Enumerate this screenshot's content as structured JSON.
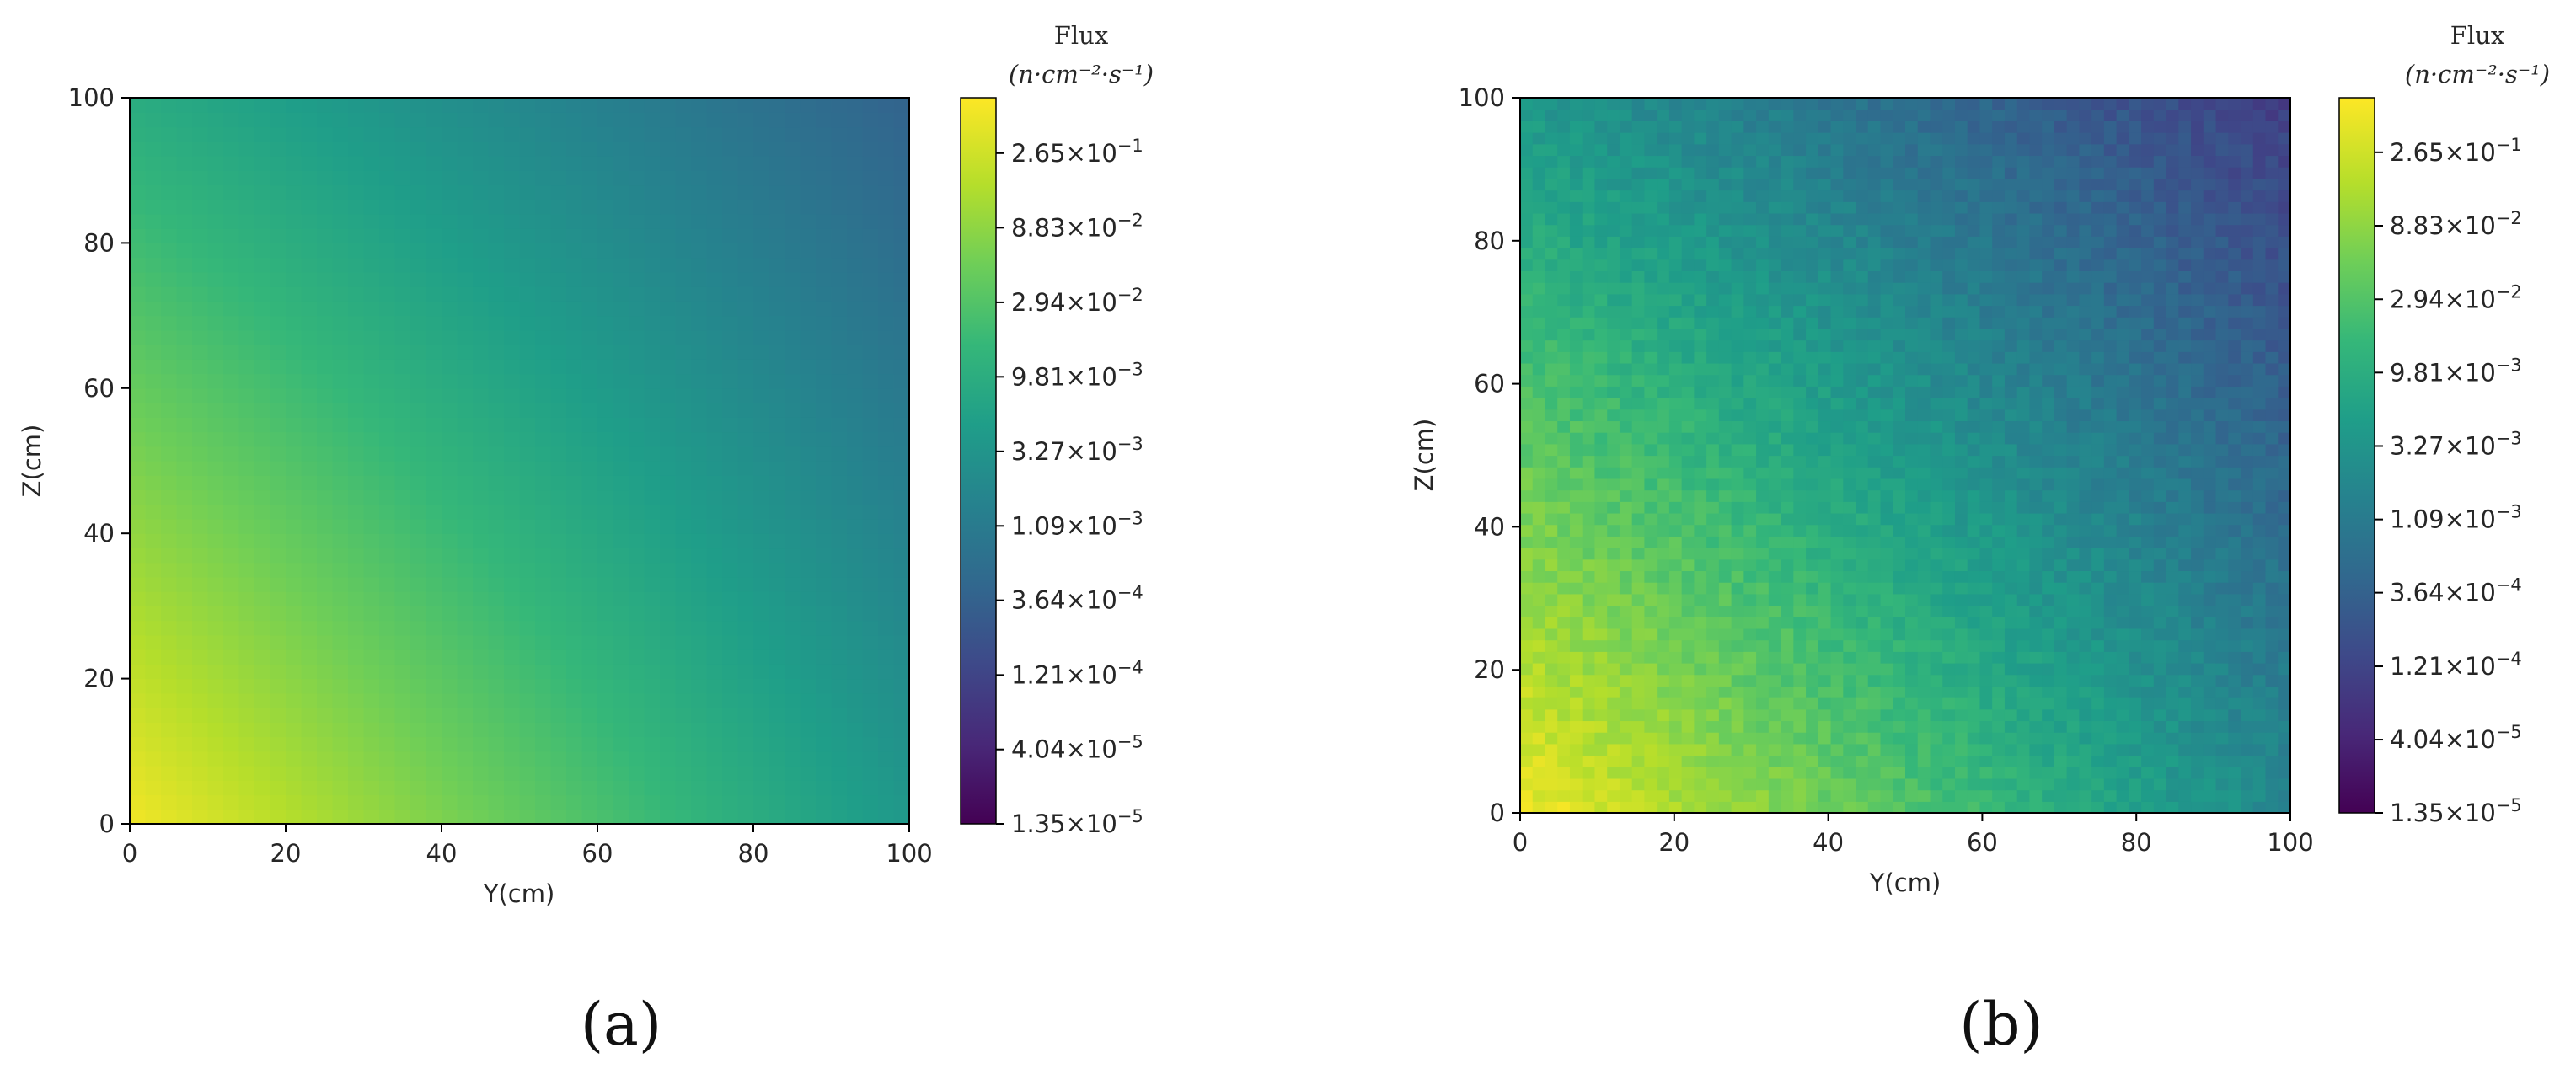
{
  "chart_data": [
    {
      "type": "heatmap",
      "panel_label": "(a)",
      "xlabel": "Y(cm)",
      "ylabel": "Z(cm)",
      "xlim": [
        0,
        100
      ],
      "ylim": [
        0,
        100
      ],
      "xticks": [
        "0",
        "20",
        "40",
        "60",
        "80",
        "100"
      ],
      "yticks": [
        "0",
        "20",
        "40",
        "60",
        "80",
        "100"
      ],
      "colorbar": {
        "title": "Flux",
        "units": "(n·cm⁻²·s⁻¹)",
        "scale": "log",
        "range": [
          1.35e-05,
          0.6
        ],
        "colormap": "viridis",
        "ticks": [
          {
            "mantissa": "1.35",
            "exponent": "-5"
          },
          {
            "mantissa": "4.04",
            "exponent": "-5"
          },
          {
            "mantissa": "1.21",
            "exponent": "-4"
          },
          {
            "mantissa": "3.64",
            "exponent": "-4"
          },
          {
            "mantissa": "1.09",
            "exponent": "-3"
          },
          {
            "mantissa": "3.27",
            "exponent": "-3"
          },
          {
            "mantissa": "9.81",
            "exponent": "-3"
          },
          {
            "mantissa": "2.94",
            "exponent": "-2"
          },
          {
            "mantissa": "8.83",
            "exponent": "-2"
          },
          {
            "mantissa": "2.65",
            "exponent": "-1"
          }
        ]
      },
      "field": {
        "description": "smooth",
        "corner_values": {
          "y0_z0": 0.5,
          "y100_z0": 0.004,
          "y0_z100": 0.01,
          "y100_z100": 0.0004
        }
      }
    },
    {
      "type": "heatmap",
      "panel_label": "(b)",
      "xlabel": "Y(cm)",
      "ylabel": "Z(cm)",
      "xlim": [
        0,
        100
      ],
      "ylim": [
        0,
        100
      ],
      "xticks": [
        "0",
        "20",
        "40",
        "60",
        "80",
        "100"
      ],
      "yticks": [
        "0",
        "20",
        "40",
        "60",
        "80",
        "100"
      ],
      "colorbar": {
        "title": "Flux",
        "units": "(n·cm⁻²·s⁻¹)",
        "scale": "log",
        "range": [
          1.35e-05,
          0.6
        ],
        "colormap": "viridis",
        "ticks": [
          {
            "mantissa": "1.35",
            "exponent": "-5"
          },
          {
            "mantissa": "4.04",
            "exponent": "-5"
          },
          {
            "mantissa": "1.21",
            "exponent": "-4"
          },
          {
            "mantissa": "3.64",
            "exponent": "-4"
          },
          {
            "mantissa": "1.09",
            "exponent": "-3"
          },
          {
            "mantissa": "3.27",
            "exponent": "-3"
          },
          {
            "mantissa": "9.81",
            "exponent": "-3"
          },
          {
            "mantissa": "2.94",
            "exponent": "-2"
          },
          {
            "mantissa": "8.83",
            "exponent": "-2"
          },
          {
            "mantissa": "2.65",
            "exponent": "-1"
          }
        ]
      },
      "field": {
        "description": "noisy",
        "corner_values": {
          "y0_z0": 0.5,
          "y100_z0": 0.002,
          "y0_z100": 0.004,
          "y100_z100": 0.0001
        }
      }
    }
  ]
}
